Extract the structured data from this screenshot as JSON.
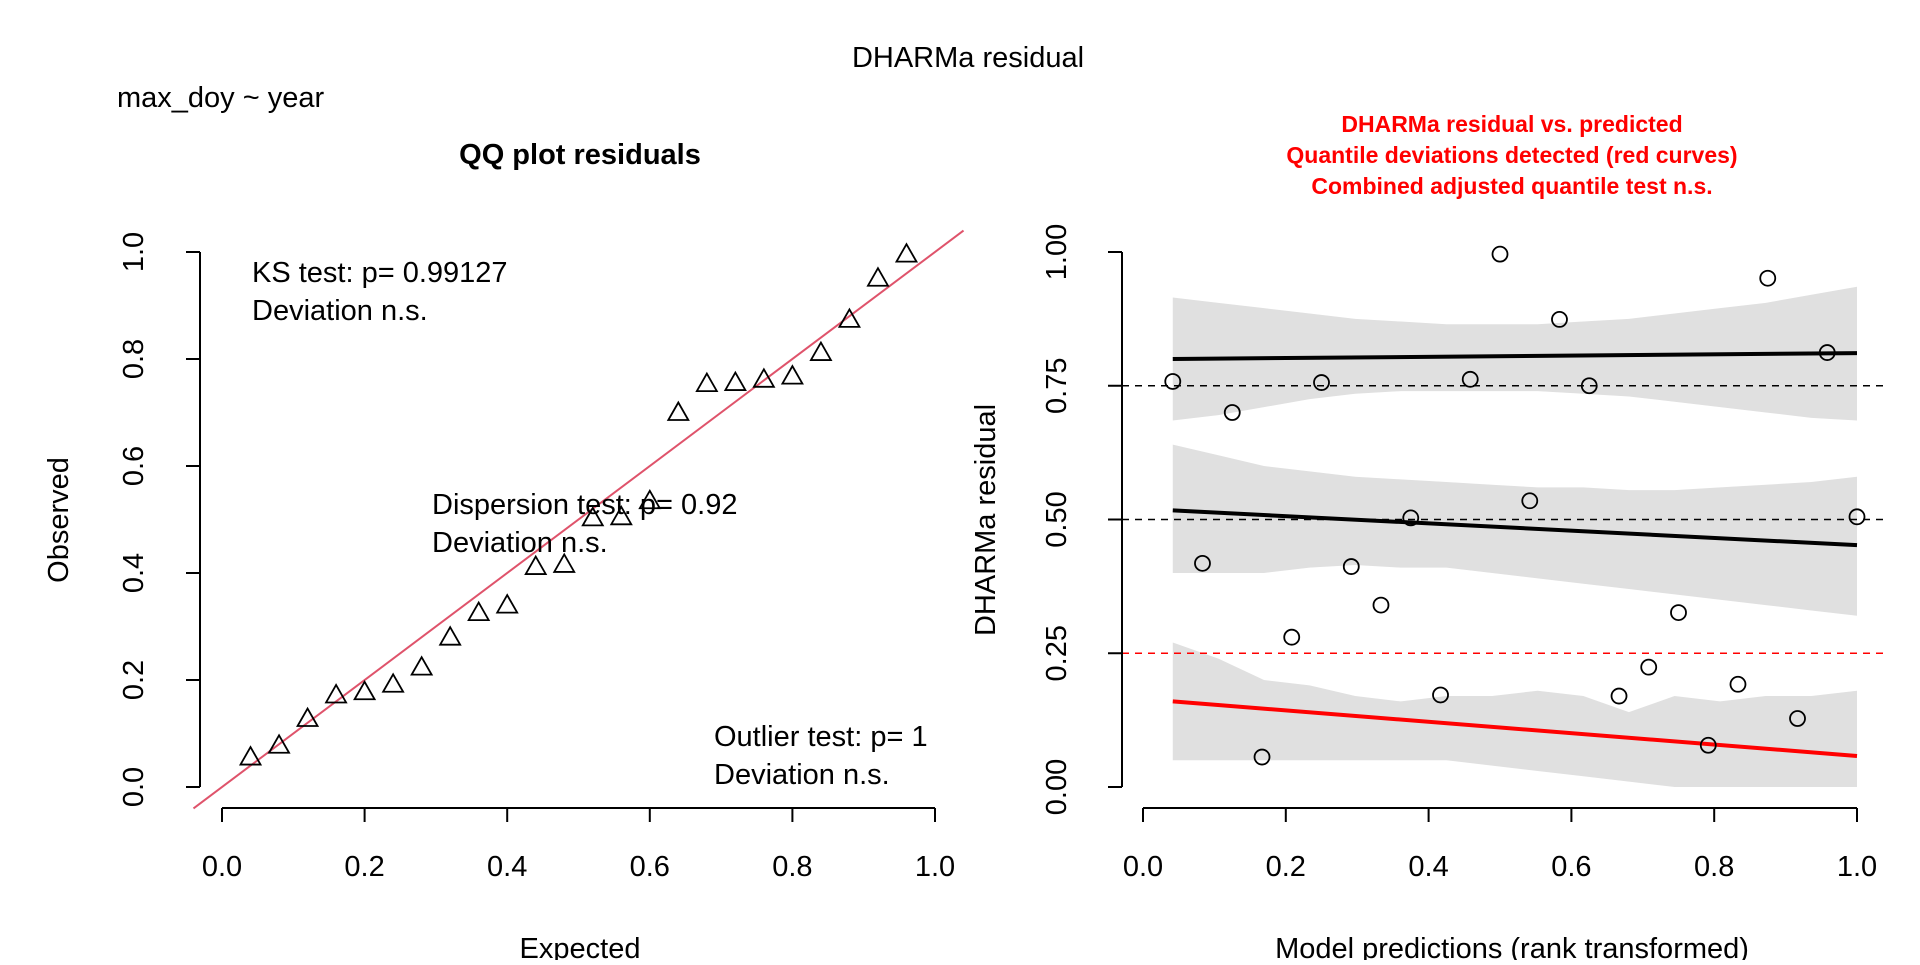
{
  "page_title": "DHARMa residual",
  "formula": "max_doy ~ year",
  "chart_data": [
    {
      "type": "scatter",
      "panel": "qq",
      "title": "QQ plot residuals",
      "xlabel": "Expected",
      "ylabel": "Observed",
      "xlim": [
        0,
        1
      ],
      "ylim": [
        0,
        1
      ],
      "x_ticks": [
        "0.0",
        "0.2",
        "0.4",
        "0.6",
        "0.8",
        "1.0"
      ],
      "y_ticks": [
        "0.0",
        "0.2",
        "0.4",
        "0.6",
        "0.8",
        "1.0"
      ],
      "marker": "triangle",
      "reference_line": {
        "from": [
          0,
          0
        ],
        "to": [
          1,
          1
        ],
        "color": "#df536b"
      },
      "x": [
        0.04,
        0.08,
        0.12,
        0.16,
        0.2,
        0.24,
        0.28,
        0.32,
        0.36,
        0.4,
        0.44,
        0.48,
        0.52,
        0.56,
        0.6,
        0.64,
        0.68,
        0.72,
        0.76,
        0.8,
        0.84,
        0.88,
        0.92,
        0.96
      ],
      "y": [
        0.056,
        0.078,
        0.128,
        0.172,
        0.178,
        0.192,
        0.224,
        0.28,
        0.326,
        0.34,
        0.412,
        0.416,
        0.503,
        0.505,
        0.535,
        0.7,
        0.754,
        0.756,
        0.762,
        0.768,
        0.812,
        0.874,
        0.951,
        0.996
      ],
      "annotations": [
        {
          "lines": [
            "KS test: p= 0.99127",
            "Deviation  n.s."
          ]
        },
        {
          "lines": [
            "Dispersion test: p= 0.92",
            "Deviation  n.s."
          ]
        },
        {
          "lines": [
            "Outlier test: p= 1",
            "Deviation  n.s."
          ]
        }
      ]
    },
    {
      "type": "scatter",
      "panel": "residual-vs-predicted",
      "title_lines": [
        "DHARMa residual vs. predicted",
        "Quantile deviations detected (red curves)",
        "Combined adjusted quantile test n.s."
      ],
      "title_color": "#ff0000",
      "xlabel": "Model predictions (rank transformed)",
      "ylabel": "DHARMa residual",
      "xlim": [
        0,
        1
      ],
      "ylim": [
        0,
        1
      ],
      "x_ticks": [
        "0.0",
        "0.2",
        "0.4",
        "0.6",
        "0.8",
        "1.0"
      ],
      "y_ticks": [
        "0.00",
        "0.25",
        "0.50",
        "0.75",
        "1.00"
      ],
      "marker": "circle",
      "x": [
        0.0417,
        0.0833,
        0.125,
        0.1667,
        0.2083,
        0.25,
        0.2917,
        0.3333,
        0.375,
        0.4167,
        0.4583,
        0.5,
        0.5417,
        0.5833,
        0.625,
        0.6667,
        0.7083,
        0.75,
        0.7917,
        0.8333,
        0.875,
        0.9167,
        0.9583,
        1.0
      ],
      "y": [
        0.758,
        0.418,
        0.7,
        0.056,
        0.28,
        0.756,
        0.412,
        0.34,
        0.503,
        0.172,
        0.762,
        0.996,
        0.535,
        0.874,
        0.75,
        0.17,
        0.224,
        0.326,
        0.078,
        0.192,
        0.951,
        0.128,
        0.812,
        0.505
      ],
      "reference_quantiles": [
        {
          "y": 0.25,
          "color": "#ff0000"
        },
        {
          "y": 0.5,
          "color": "#000000"
        },
        {
          "y": 0.75,
          "color": "#000000"
        }
      ],
      "quantile_fits": [
        {
          "quantile": 0.25,
          "color": "#ff0000",
          "x": [
            0.0417,
            1.0
          ],
          "y": [
            0.16,
            0.058
          ],
          "band_upper": [
            0.27,
            0.24,
            0.2,
            0.19,
            0.17,
            0.16,
            0.17,
            0.17,
            0.18,
            0.17,
            0.14,
            0.17,
            0.16,
            0.17,
            0.17,
            0.18
          ],
          "band_lower": [
            0.05,
            0.05,
            0.05,
            0.05,
            0.05,
            0.05,
            0.05,
            0.04,
            0.03,
            0.02,
            0.01,
            0.0,
            0.0,
            0.0,
            0.0,
            0.0
          ]
        },
        {
          "quantile": 0.5,
          "color": "#000000",
          "x": [
            0.0417,
            1.0
          ],
          "y": [
            0.517,
            0.452
          ],
          "band_upper": [
            0.64,
            0.62,
            0.6,
            0.59,
            0.58,
            0.575,
            0.57,
            0.565,
            0.56,
            0.56,
            0.555,
            0.555,
            0.56,
            0.565,
            0.57,
            0.58
          ],
          "band_lower": [
            0.4,
            0.4,
            0.4,
            0.41,
            0.415,
            0.41,
            0.41,
            0.4,
            0.39,
            0.38,
            0.37,
            0.36,
            0.35,
            0.34,
            0.33,
            0.32
          ]
        },
        {
          "quantile": 0.75,
          "color": "#000000",
          "x": [
            0.0417,
            1.0
          ],
          "y": [
            0.8,
            0.811
          ],
          "band_upper": [
            0.915,
            0.905,
            0.895,
            0.885,
            0.875,
            0.87,
            0.865,
            0.865,
            0.865,
            0.87,
            0.875,
            0.885,
            0.895,
            0.905,
            0.92,
            0.935
          ],
          "band_lower": [
            0.685,
            0.695,
            0.71,
            0.725,
            0.735,
            0.74,
            0.74,
            0.74,
            0.74,
            0.735,
            0.73,
            0.72,
            0.71,
            0.7,
            0.69,
            0.685
          ]
        }
      ],
      "band_color": "#e0e0e0"
    }
  ]
}
